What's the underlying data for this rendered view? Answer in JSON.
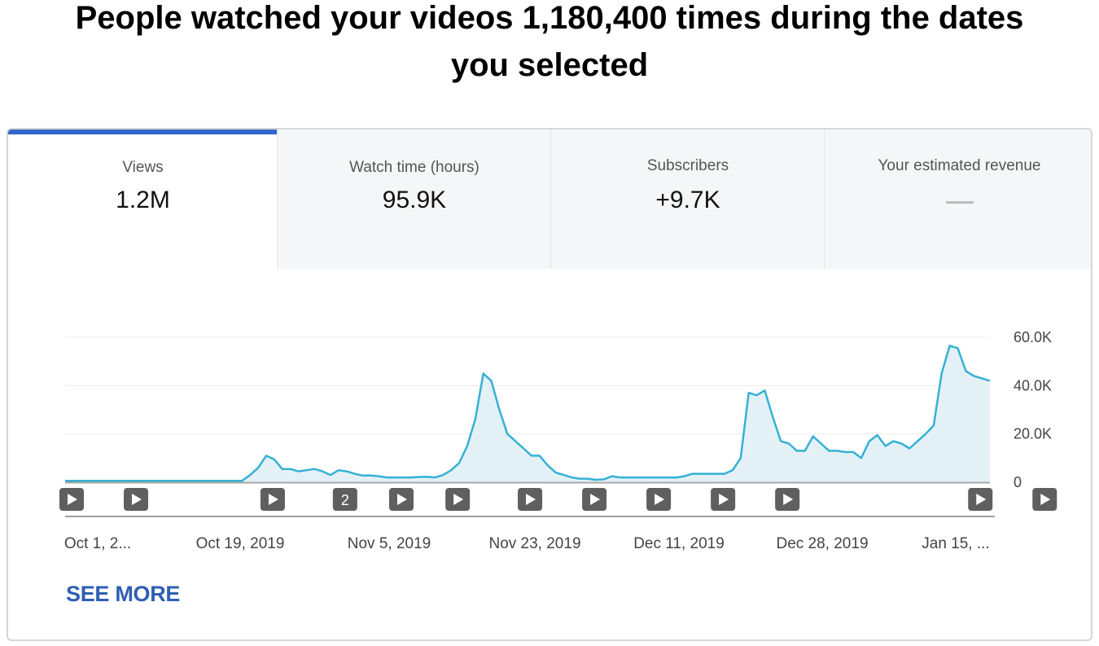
{
  "header": {
    "title_line1": "People watched your videos 1,180,400 times during the dates",
    "title_line2": "you selected"
  },
  "tabs": [
    {
      "label": "Views",
      "value": "1.2M",
      "active": true
    },
    {
      "label": "Watch time (hours)",
      "value": "95.9K",
      "active": false
    },
    {
      "label": "Subscribers",
      "value": "+9.7K",
      "active": false
    },
    {
      "label": "Your estimated revenue",
      "value": "",
      "active": false
    }
  ],
  "colors": {
    "accent_tab": "#3367c9",
    "line": "#35b1d5",
    "area": "#e3f1f7",
    "link": "#2f5fb3",
    "marker_bg": "#5f5f5f"
  },
  "chart_data": {
    "type": "area",
    "metric": "Views",
    "x_start": "Oct 1, 2019",
    "x_step": "1 day",
    "values": [
      600,
      600,
      600,
      600,
      600,
      600,
      600,
      600,
      600,
      600,
      600,
      600,
      600,
      600,
      600,
      600,
      600,
      600,
      600,
      600,
      600,
      600,
      600,
      3000,
      6000,
      11000,
      9500,
      5500,
      5500,
      4500,
      5000,
      5500,
      4500,
      3000,
      5000,
      4500,
      3500,
      2800,
      2800,
      2500,
      2000,
      2000,
      2000,
      2000,
      2200,
      2300,
      2000,
      3000,
      5000,
      8000,
      15000,
      26000,
      45000,
      42000,
      30000,
      20000,
      17000,
      14000,
      11000,
      11000,
      7000,
      4000,
      3000,
      2000,
      1500,
      1500,
      1000,
      1200,
      2500,
      2000,
      2000,
      2000,
      2000,
      2000,
      2000,
      2000,
      2000,
      2500,
      3500,
      3500,
      3500,
      3500,
      3500,
      5000,
      10000,
      37000,
      36000,
      38000,
      27000,
      17000,
      16000,
      13000,
      13000,
      19000,
      16000,
      13000,
      13000,
      12500,
      12500,
      10000,
      17000,
      19500,
      15000,
      17000,
      16000,
      14000,
      17000,
      20000,
      23500,
      45000,
      56500,
      55500,
      46000,
      44000,
      43000,
      42000
    ],
    "y_ticks": [
      "60.0K",
      "40.0K",
      "20.0K",
      "0"
    ],
    "ylim": [
      0,
      60000
    ],
    "x_tick_labels": [
      "Oct 1, 2...",
      "Oct 19, 2019",
      "Nov 5, 2019",
      "Nov 23, 2019",
      "Dec 11, 2019",
      "Dec 28, 2019",
      "Jan 15, ..."
    ],
    "grid": true,
    "y_axis_side": "right"
  },
  "markers": [
    {
      "label": ""
    },
    {
      "label": ""
    },
    {
      "label": ""
    },
    {
      "label": "2"
    },
    {
      "label": ""
    },
    {
      "label": ""
    },
    {
      "label": ""
    },
    {
      "label": ""
    },
    {
      "label": ""
    },
    {
      "label": ""
    },
    {
      "label": ""
    },
    {
      "label": ""
    },
    {
      "label": ""
    }
  ],
  "see_more_label": "SEE MORE"
}
